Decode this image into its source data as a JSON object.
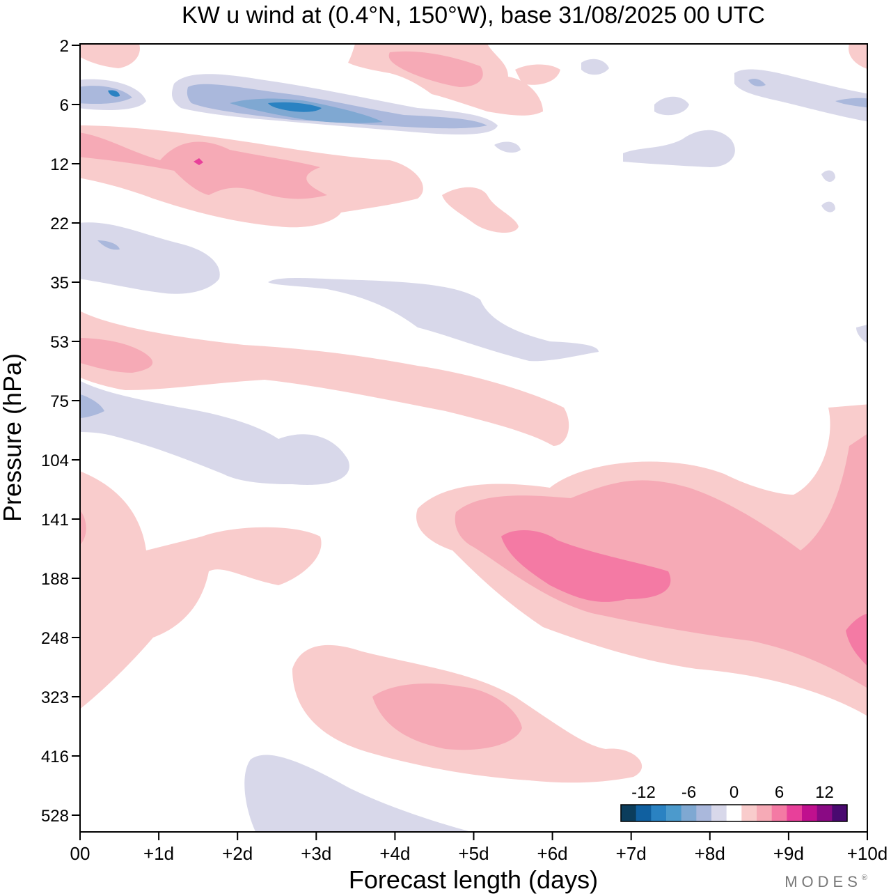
{
  "chart_data": {
    "type": "heatmap",
    "title": "KW u wind at (0.4°N, 150°W),  base 31/08/2025  00 UTC",
    "xlabel": "Forecast length (days)",
    "ylabel": "Pressure (hPa)",
    "x_ticks": [
      "00",
      "+1d",
      "+2d",
      "+3d",
      "+4d",
      "+5d",
      "+6d",
      "+7d",
      "+8d",
      "+9d",
      "+10d"
    ],
    "y_ticks": [
      "2",
      "6",
      "12",
      "22",
      "35",
      "53",
      "75",
      "104",
      "141",
      "188",
      "248",
      "323",
      "416",
      "528"
    ],
    "xlim": [
      0,
      10
    ],
    "levels": [
      -14,
      -12,
      -10,
      -8,
      -6,
      -4,
      -2,
      2,
      4,
      6,
      8,
      10,
      12,
      14
    ],
    "colorbar": {
      "labels": [
        "-12",
        "-6",
        "0",
        "6",
        "12"
      ],
      "colors": [
        "#0b3d5c",
        "#1060a0",
        "#2a82c2",
        "#4c9acc",
        "#7fa8d2",
        "#aab8dc",
        "#d8d8ea",
        "#ffffff",
        "#f9cccc",
        "#f6aab6",
        "#f47aa4",
        "#e8409a",
        "#c0108e",
        "#8a0a84",
        "#4a0a70"
      ]
    },
    "features": [
      {
        "id": "pos-surface-lower-left",
        "sign": "positive",
        "center": [
          0.5,
          248
        ],
        "peak_ms": 2
      },
      {
        "id": "pos-141-188-ridge",
        "sign": "positive",
        "center": [
          3,
          160
        ],
        "peak_ms": 2
      },
      {
        "id": "pos-main-jet",
        "sign": "positive",
        "center": [
          7,
          170
        ],
        "peak_ms": 6
      },
      {
        "id": "pos-lower-tropo",
        "sign": "positive",
        "center": [
          4.5,
          350
        ],
        "peak_ms": 4
      },
      {
        "id": "pos-lower-right-edge",
        "sign": "positive",
        "center": [
          10,
          260
        ],
        "peak_ms": 6
      },
      {
        "id": "neg-lower-tropo",
        "sign": "negative",
        "center": [
          3,
          470
        ],
        "peak_ms": -2
      },
      {
        "id": "neg-75-104",
        "sign": "negative",
        "center": [
          2,
          90
        ],
        "peak_ms": -2
      },
      {
        "id": "neg-35-53",
        "sign": "negative",
        "center": [
          4.5,
          45
        ],
        "peak_ms": -2
      },
      {
        "id": "neg-22-35",
        "sign": "negative",
        "center": [
          1,
          30
        ],
        "peak_ms": -2
      },
      {
        "id": "pos-53-75",
        "sign": "positive",
        "center": [
          3,
          60
        ],
        "peak_ms": 4
      },
      {
        "id": "pos-12-22",
        "sign": "positive",
        "center": [
          2,
          12
        ],
        "peak_ms": 6
      },
      {
        "id": "neg-6",
        "sign": "negative",
        "center": [
          2.8,
          6
        ],
        "peak_ms": -8
      },
      {
        "id": "pos-2-6",
        "sign": "positive",
        "center": [
          4.5,
          4
        ],
        "peak_ms": 4
      },
      {
        "id": "neg-upper-right",
        "sign": "negative",
        "center": [
          8,
          10
        ],
        "peak_ms": -4
      }
    ]
  },
  "branding": {
    "logo_text": "MODES",
    "mark": "®"
  }
}
